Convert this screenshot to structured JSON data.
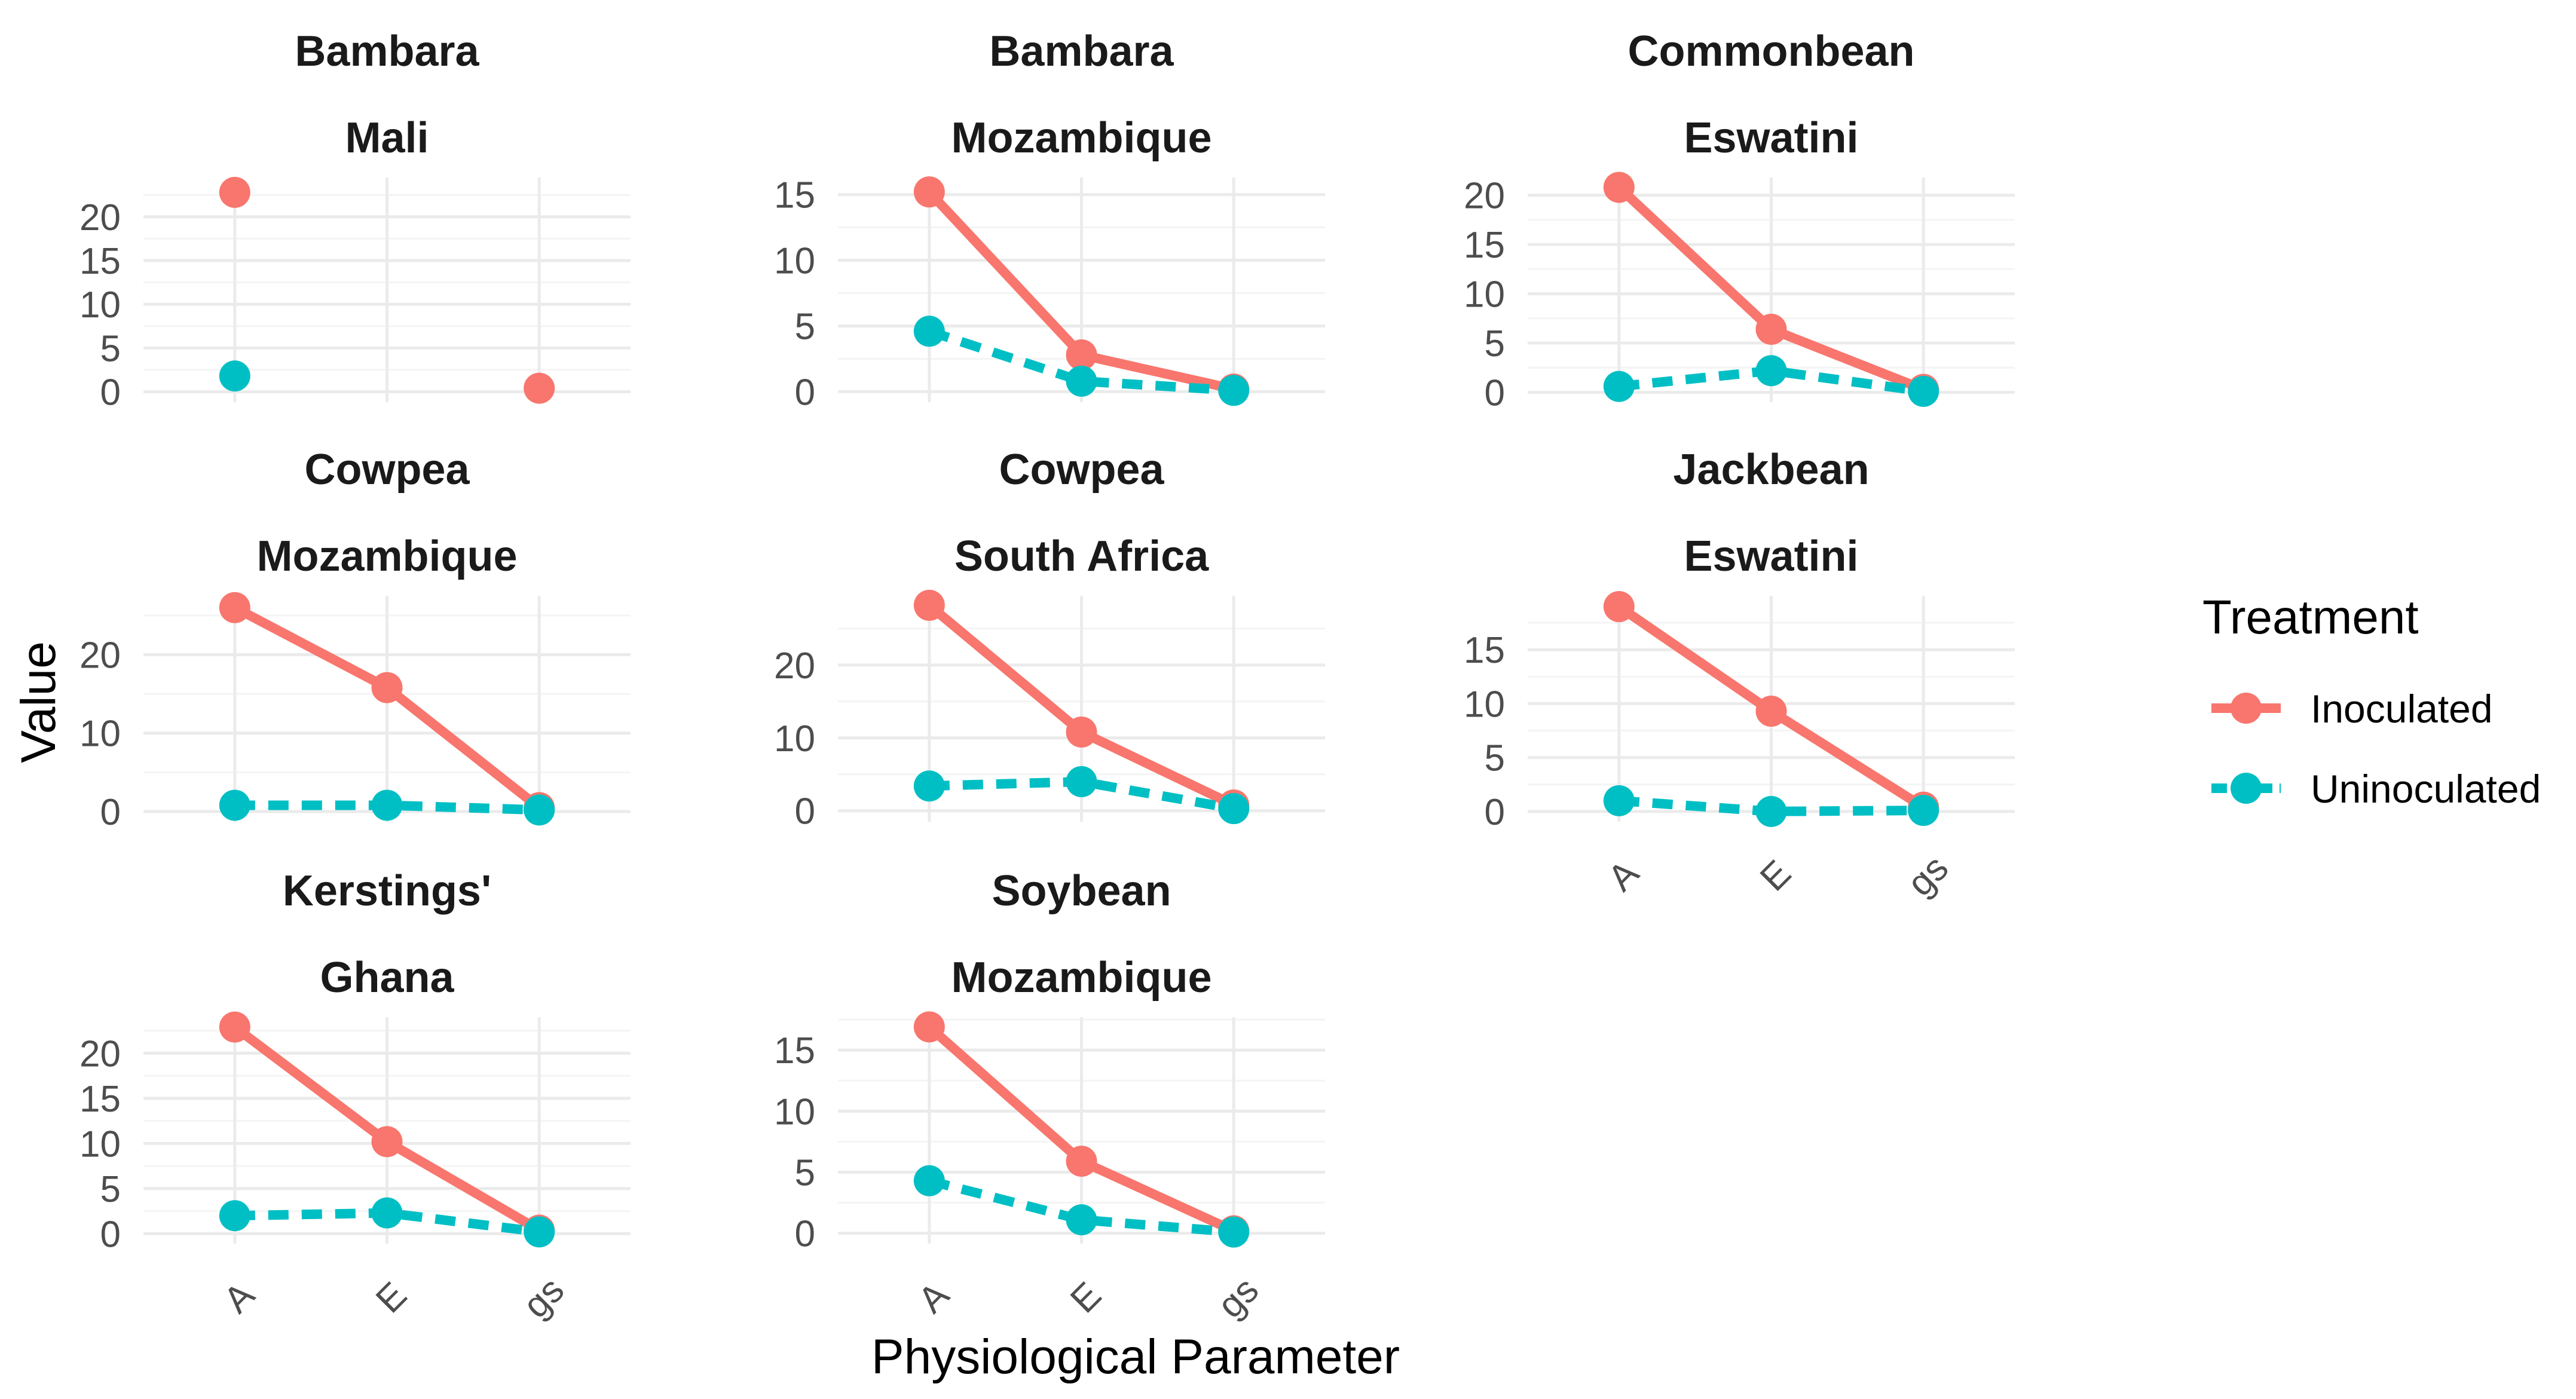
{
  "chart_data": {
    "type": "line",
    "facet_layout": "wrap",
    "xlabel": "Physiological Parameter",
    "ylabel": "Value",
    "x_categories": [
      "A",
      "E",
      "gs"
    ],
    "x_tick_rotation": "-45 degrees",
    "grid": true,
    "legend": {
      "title": "Treatment",
      "placement": "right",
      "entries": [
        {
          "name": "Inoculated",
          "color": "#F8766D",
          "line": "solid"
        },
        {
          "name": "Uninoculated",
          "color": "#00BFC4",
          "line": "dashed"
        }
      ]
    },
    "panels": [
      {
        "crop": "Bambara",
        "country": "Mali",
        "ylim": [
          -1.2,
          24.5
        ],
        "yticks": [
          0,
          5,
          10,
          15,
          20
        ],
        "connect_lines": false,
        "series": [
          {
            "name": "Inoculated",
            "values": [
              22.8,
              null,
              0.4
            ]
          },
          {
            "name": "Uninoculated",
            "values": [
              1.8,
              null,
              null
            ]
          }
        ]
      },
      {
        "crop": "Bambara",
        "country": "Mozambique",
        "ylim": [
          -0.8,
          16.3
        ],
        "yticks": [
          0,
          5,
          10,
          15
        ],
        "connect_lines": true,
        "series": [
          {
            "name": "Inoculated",
            "values": [
              15.2,
              2.8,
              0.2
            ]
          },
          {
            "name": "Uninoculated",
            "values": [
              4.6,
              0.8,
              0.1
            ]
          }
        ]
      },
      {
        "crop": "Commonbean",
        "country": "Eswatini",
        "ylim": [
          -1.0,
          21.8
        ],
        "yticks": [
          0,
          5,
          10,
          15,
          20
        ],
        "connect_lines": true,
        "series": [
          {
            "name": "Inoculated",
            "values": [
              20.8,
              6.4,
              0.3
            ]
          },
          {
            "name": "Uninoculated",
            "values": [
              0.6,
              2.2,
              0.1
            ]
          }
        ]
      },
      {
        "crop": "Cowpea",
        "country": "Mozambique",
        "ylim": [
          -1.3,
          27.5
        ],
        "yticks": [
          0,
          10,
          20
        ],
        "connect_lines": true,
        "series": [
          {
            "name": "Inoculated",
            "values": [
              26.0,
              15.8,
              0.5
            ]
          },
          {
            "name": "Uninoculated",
            "values": [
              0.8,
              0.8,
              0.2
            ]
          }
        ]
      },
      {
        "crop": "Cowpea",
        "country": "South Africa",
        "ylim": [
          -1.5,
          29.5
        ],
        "yticks": [
          0,
          10,
          20
        ],
        "connect_lines": true,
        "series": [
          {
            "name": "Inoculated",
            "values": [
              28.2,
              10.8,
              0.8
            ]
          },
          {
            "name": "Uninoculated",
            "values": [
              3.4,
              4.0,
              0.3
            ]
          }
        ]
      },
      {
        "crop": "Jackbean",
        "country": "Eswatini",
        "ylim": [
          -0.95,
          20.0
        ],
        "yticks": [
          0,
          5,
          10,
          15
        ],
        "connect_lines": true,
        "series": [
          {
            "name": "Inoculated",
            "values": [
              19.0,
              9.3,
              0.4
            ]
          },
          {
            "name": "Uninoculated",
            "values": [
              1.0,
              0.0,
              0.1
            ]
          }
        ]
      },
      {
        "crop": "Kerstings'",
        "country": "Ghana",
        "ylim": [
          -1.1,
          24.0
        ],
        "yticks": [
          0,
          5,
          10,
          15,
          20
        ],
        "connect_lines": true,
        "series": [
          {
            "name": "Inoculated",
            "values": [
              22.9,
              10.2,
              0.4
            ]
          },
          {
            "name": "Uninoculated",
            "values": [
              2.0,
              2.3,
              0.2
            ]
          }
        ]
      },
      {
        "crop": "Soybean",
        "country": "Mozambique",
        "ylim": [
          -0.85,
          17.7
        ],
        "yticks": [
          0,
          5,
          10,
          15
        ],
        "connect_lines": true,
        "series": [
          {
            "name": "Inoculated",
            "values": [
              16.9,
              5.9,
              0.2
            ]
          },
          {
            "name": "Uninoculated",
            "values": [
              4.3,
              1.1,
              0.1
            ]
          }
        ]
      }
    ]
  }
}
